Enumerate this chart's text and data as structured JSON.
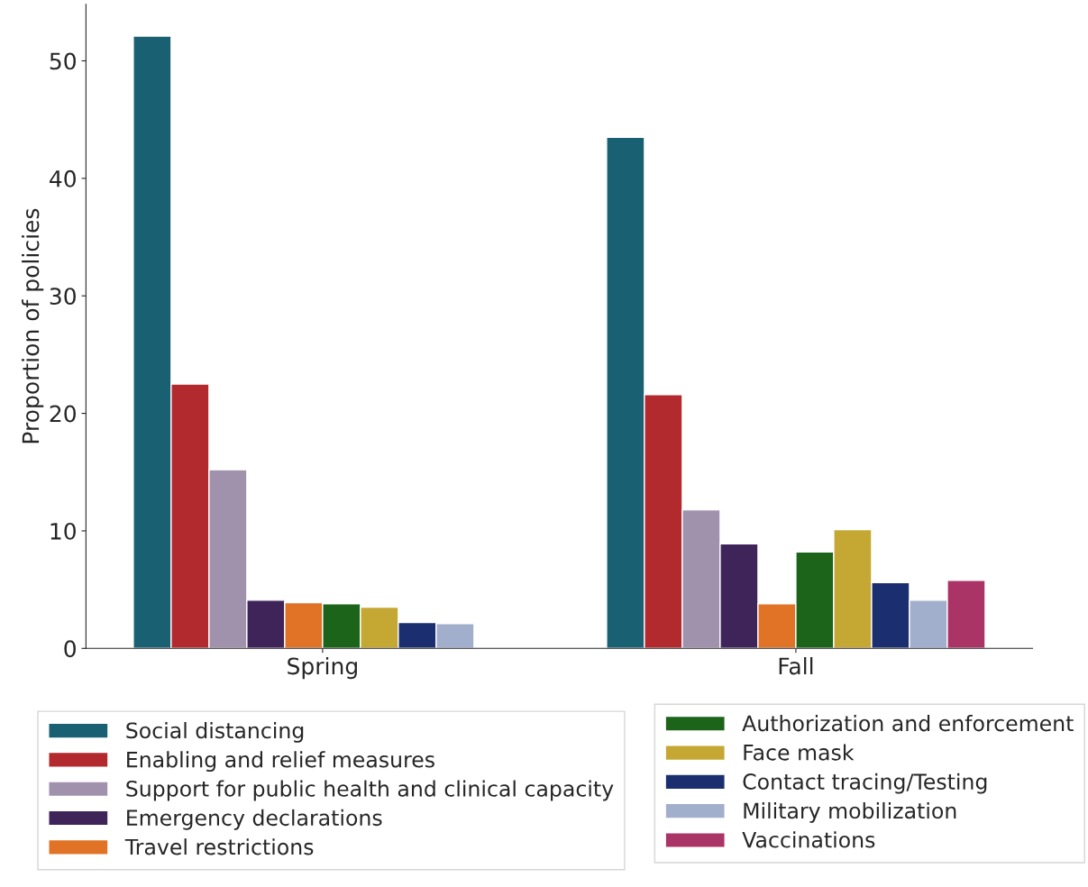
{
  "chart_data": {
    "type": "bar",
    "ylabel": "Proportion of policies",
    "categories": [
      "Spring",
      "Fall"
    ],
    "series": [
      {
        "name": "Social distancing",
        "color": "#1a6073",
        "values": [
          52.1,
          43.5
        ]
      },
      {
        "name": "Enabling and relief measures",
        "color": "#b2292e",
        "values": [
          22.5,
          21.6
        ]
      },
      {
        "name": "Support for public health and clinical capacity",
        "color": "#a092ad",
        "values": [
          15.2,
          11.8
        ]
      },
      {
        "name": "Emergency declarations",
        "color": "#3f2459",
        "values": [
          4.1,
          8.9
        ]
      },
      {
        "name": "Travel restrictions",
        "color": "#e07326",
        "values": [
          3.9,
          3.8
        ]
      },
      {
        "name": "Authorization and enforcement",
        "color": "#1b6419",
        "values": [
          3.8,
          8.2
        ]
      },
      {
        "name": "Face mask",
        "color": "#c4a833",
        "values": [
          3.5,
          10.1
        ]
      },
      {
        "name": "Contact tracing/Testing",
        "color": "#1b2f70",
        "values": [
          2.2,
          5.6
        ]
      },
      {
        "name": "Military mobilization",
        "color": "#a2afcc",
        "values": [
          2.1,
          4.1
        ]
      },
      {
        "name": "Vaccinations",
        "color": "#ab3467",
        "values": [
          null,
          5.8
        ]
      }
    ],
    "ylim": [
      0,
      54.8
    ],
    "yticks": [
      0,
      10,
      20,
      30,
      40,
      50
    ],
    "grid": false,
    "legend": "bottom"
  }
}
